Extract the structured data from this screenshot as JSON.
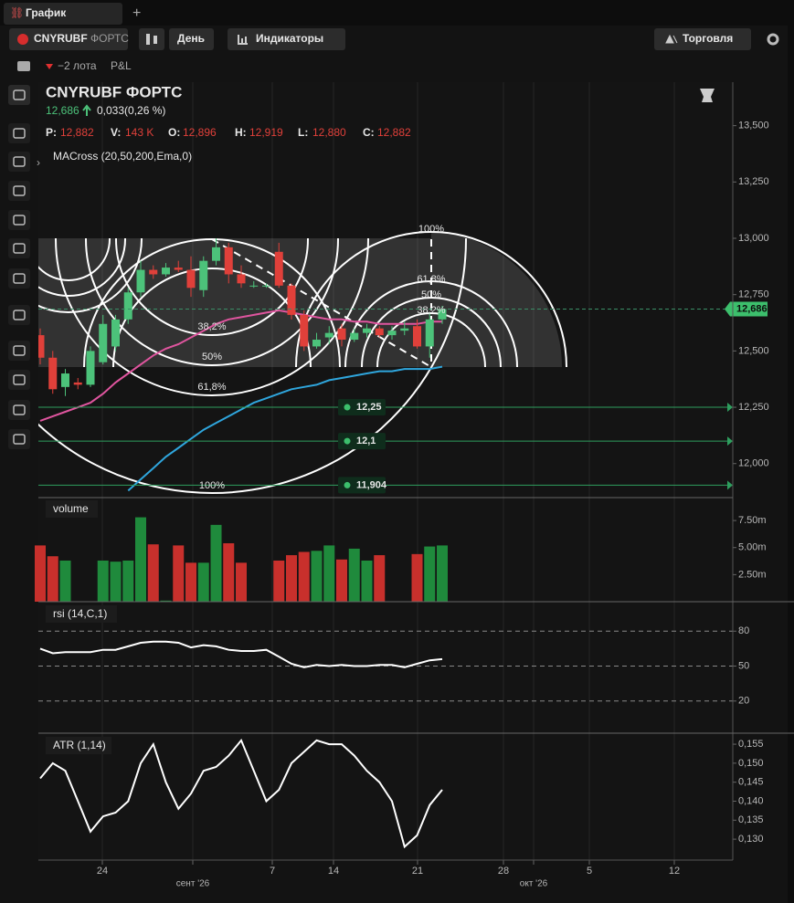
{
  "tabs": {
    "active": "График"
  },
  "toolbar": {
    "symbol": "CNYRUBF",
    "exchange": "ФОРТС",
    "interval": "День",
    "indicators": "Индикаторы",
    "trade": "Торговля"
  },
  "position": {
    "lots": "−2 лота",
    "pnl": "P&L"
  },
  "legend": {
    "title": "CNYRUBF ФОРТС",
    "last": "12,686",
    "change": "0,033(0,26 %)",
    "fields": [
      {
        "key": "P:",
        "value": "12,882"
      },
      {
        "key": "V:",
        "value": "143 K"
      },
      {
        "key": "O:",
        "value": "12,896"
      },
      {
        "key": "H:",
        "value": "12,919"
      },
      {
        "key": "L:",
        "value": "12,880"
      },
      {
        "key": "C:",
        "value": "12,882"
      }
    ],
    "indicator": "MACross (20,50,200,Ema,0)"
  },
  "time_axis": [
    "24",
    "сент '26",
    "7",
    "14",
    "21",
    "28",
    "окт '26",
    "5",
    "12"
  ],
  "chart_data": [
    {
      "type": "candlestick",
      "open": [
        12.57,
        12.47,
        12.34,
        12.36,
        12.35,
        12.45,
        12.52,
        12.64,
        12.76,
        12.86,
        12.84,
        12.87,
        12.86,
        12.77,
        12.9,
        12.96,
        12.84,
        12.79,
        12.79,
        12.94,
        12.79,
        12.66,
        12.52,
        12.56,
        12.6,
        12.55,
        12.58,
        12.6,
        12.57,
        12.59,
        12.61,
        12.52,
        12.64
      ],
      "high": [
        12.6,
        12.5,
        12.42,
        12.38,
        12.52,
        12.66,
        12.66,
        12.78,
        12.9,
        12.88,
        12.89,
        12.9,
        12.92,
        12.92,
        13.0,
        12.98,
        12.88,
        12.81,
        12.8,
        12.98,
        12.8,
        12.68,
        12.58,
        12.61,
        12.62,
        12.6,
        12.62,
        12.61,
        12.61,
        12.63,
        12.64,
        12.67,
        12.7
      ],
      "low": [
        12.44,
        12.31,
        12.3,
        12.33,
        12.34,
        12.44,
        12.5,
        12.62,
        12.74,
        12.82,
        12.83,
        12.85,
        12.74,
        12.74,
        12.88,
        12.8,
        12.78,
        12.78,
        12.78,
        12.78,
        12.64,
        12.5,
        12.51,
        12.53,
        12.52,
        12.54,
        12.56,
        12.56,
        12.55,
        12.57,
        12.51,
        12.47,
        12.62
      ],
      "close": [
        12.47,
        12.33,
        12.4,
        12.35,
        12.5,
        12.62,
        12.64,
        12.76,
        12.86,
        12.84,
        12.87,
        12.86,
        12.78,
        12.9,
        12.96,
        12.84,
        12.8,
        12.79,
        12.79,
        12.79,
        12.66,
        12.52,
        12.55,
        12.58,
        12.55,
        12.58,
        12.6,
        12.57,
        12.59,
        12.6,
        12.52,
        12.64,
        12.686
      ],
      "up_color": "#4cc27a",
      "down_color": "#e0403a",
      "lines": [
        {
          "color": "#e0559f",
          "values": [
            12.19,
            12.21,
            12.23,
            12.25,
            12.27,
            12.31,
            12.36,
            12.4,
            12.44,
            12.48,
            12.51,
            12.53,
            12.56,
            12.59,
            12.62,
            12.64,
            12.65,
            12.66,
            12.67,
            12.68,
            12.67,
            12.66,
            12.65,
            12.64,
            12.64,
            12.63,
            12.63,
            12.62,
            12.62,
            12.62,
            12.62,
            12.63,
            12.63
          ]
        },
        {
          "color": "#2fa6dd",
          "values": [
            null,
            null,
            null,
            null,
            null,
            null,
            null,
            11.88,
            11.93,
            11.98,
            12.03,
            12.07,
            12.11,
            12.15,
            12.18,
            12.21,
            12.24,
            12.27,
            12.29,
            12.31,
            12.33,
            12.34,
            12.35,
            12.37,
            12.38,
            12.39,
            12.4,
            12.41,
            12.41,
            12.42,
            12.42,
            12.42,
            12.43
          ]
        }
      ],
      "ylim": [
        11.849,
        13.693
      ],
      "yticks": [
        {
          "value": 12,
          "label": "12,000"
        },
        {
          "value": 12.25,
          "label": "12,250"
        },
        {
          "value": 12.5,
          "label": "12,500"
        },
        {
          "value": 12.75,
          "label": "12,750"
        },
        {
          "value": 13,
          "label": "13,000"
        },
        {
          "value": 13.25,
          "label": "13,250"
        },
        {
          "value": 13.5,
          "label": "13,500"
        }
      ],
      "price_lines": [
        {
          "value": 12.25,
          "label": "12,25"
        },
        {
          "value": 12.1,
          "label": "12,1"
        },
        {
          "value": 11.904,
          "label": "11,904"
        }
      ],
      "last_price": {
        "value": 12.686,
        "label": "12,686"
      },
      "fib_left": [
        "38,2%",
        "50%",
        "61,8%",
        "100%"
      ],
      "fib_right": [
        "100%",
        "61,8%",
        "50%",
        "38,2%"
      ]
    },
    {
      "type": "bar",
      "title": "volume",
      "values": [
        5.2,
        4.2,
        3.8,
        0,
        0,
        3.8,
        3.7,
        3.8,
        7.8,
        5.3,
        0.1,
        5.2,
        3.6,
        3.6,
        7.1,
        5.4,
        3.6,
        0,
        0,
        3.8,
        4.3,
        4.6,
        4.7,
        5.2,
        3.9,
        4.9,
        3.8,
        4.3,
        0,
        0,
        4.4,
        5.1,
        5.2
      ],
      "ylim": [
        0,
        9.62
      ],
      "yticks": [
        {
          "value": 2.5,
          "label": "2.50m"
        },
        {
          "value": 5,
          "label": "5.00m"
        },
        {
          "value": 7.5,
          "label": "7.50m"
        }
      ]
    },
    {
      "type": "line",
      "title": "rsi (14,C,1)",
      "color": "#ffffff",
      "values": [
        65,
        61,
        62,
        62,
        62,
        64,
        64,
        67,
        70,
        71,
        71,
        70,
        66,
        68,
        67,
        64,
        63,
        63,
        64,
        58,
        52,
        49,
        51,
        50,
        51,
        50,
        50,
        51,
        51,
        49,
        52,
        55,
        56
      ],
      "ylim": [
        -7.6,
        105.3
      ],
      "yticks": [
        20,
        50,
        80
      ]
    },
    {
      "type": "line",
      "title": "ATR (1,14)",
      "color": "#ffffff",
      "values": [
        0.146,
        0.15,
        0.148,
        0.14,
        0.132,
        0.136,
        0.137,
        0.14,
        0.15,
        0.155,
        0.145,
        0.138,
        0.142,
        0.148,
        0.149,
        0.152,
        0.156,
        0.148,
        0.14,
        0.143,
        0.15,
        0.153,
        0.156,
        0.155,
        0.155,
        0.152,
        0.148,
        0.145,
        0.14,
        0.128,
        0.131,
        0.139,
        0.143
      ],
      "ylim": [
        0.1245,
        0.1579
      ],
      "yticks": [
        {
          "value": 0.13,
          "label": "0,130"
        },
        {
          "value": 0.135,
          "label": "0,135"
        },
        {
          "value": 0.14,
          "label": "0,140"
        },
        {
          "value": 0.145,
          "label": "0,145"
        },
        {
          "value": 0.15,
          "label": "0,150"
        },
        {
          "value": 0.155,
          "label": "0,155"
        }
      ]
    }
  ]
}
